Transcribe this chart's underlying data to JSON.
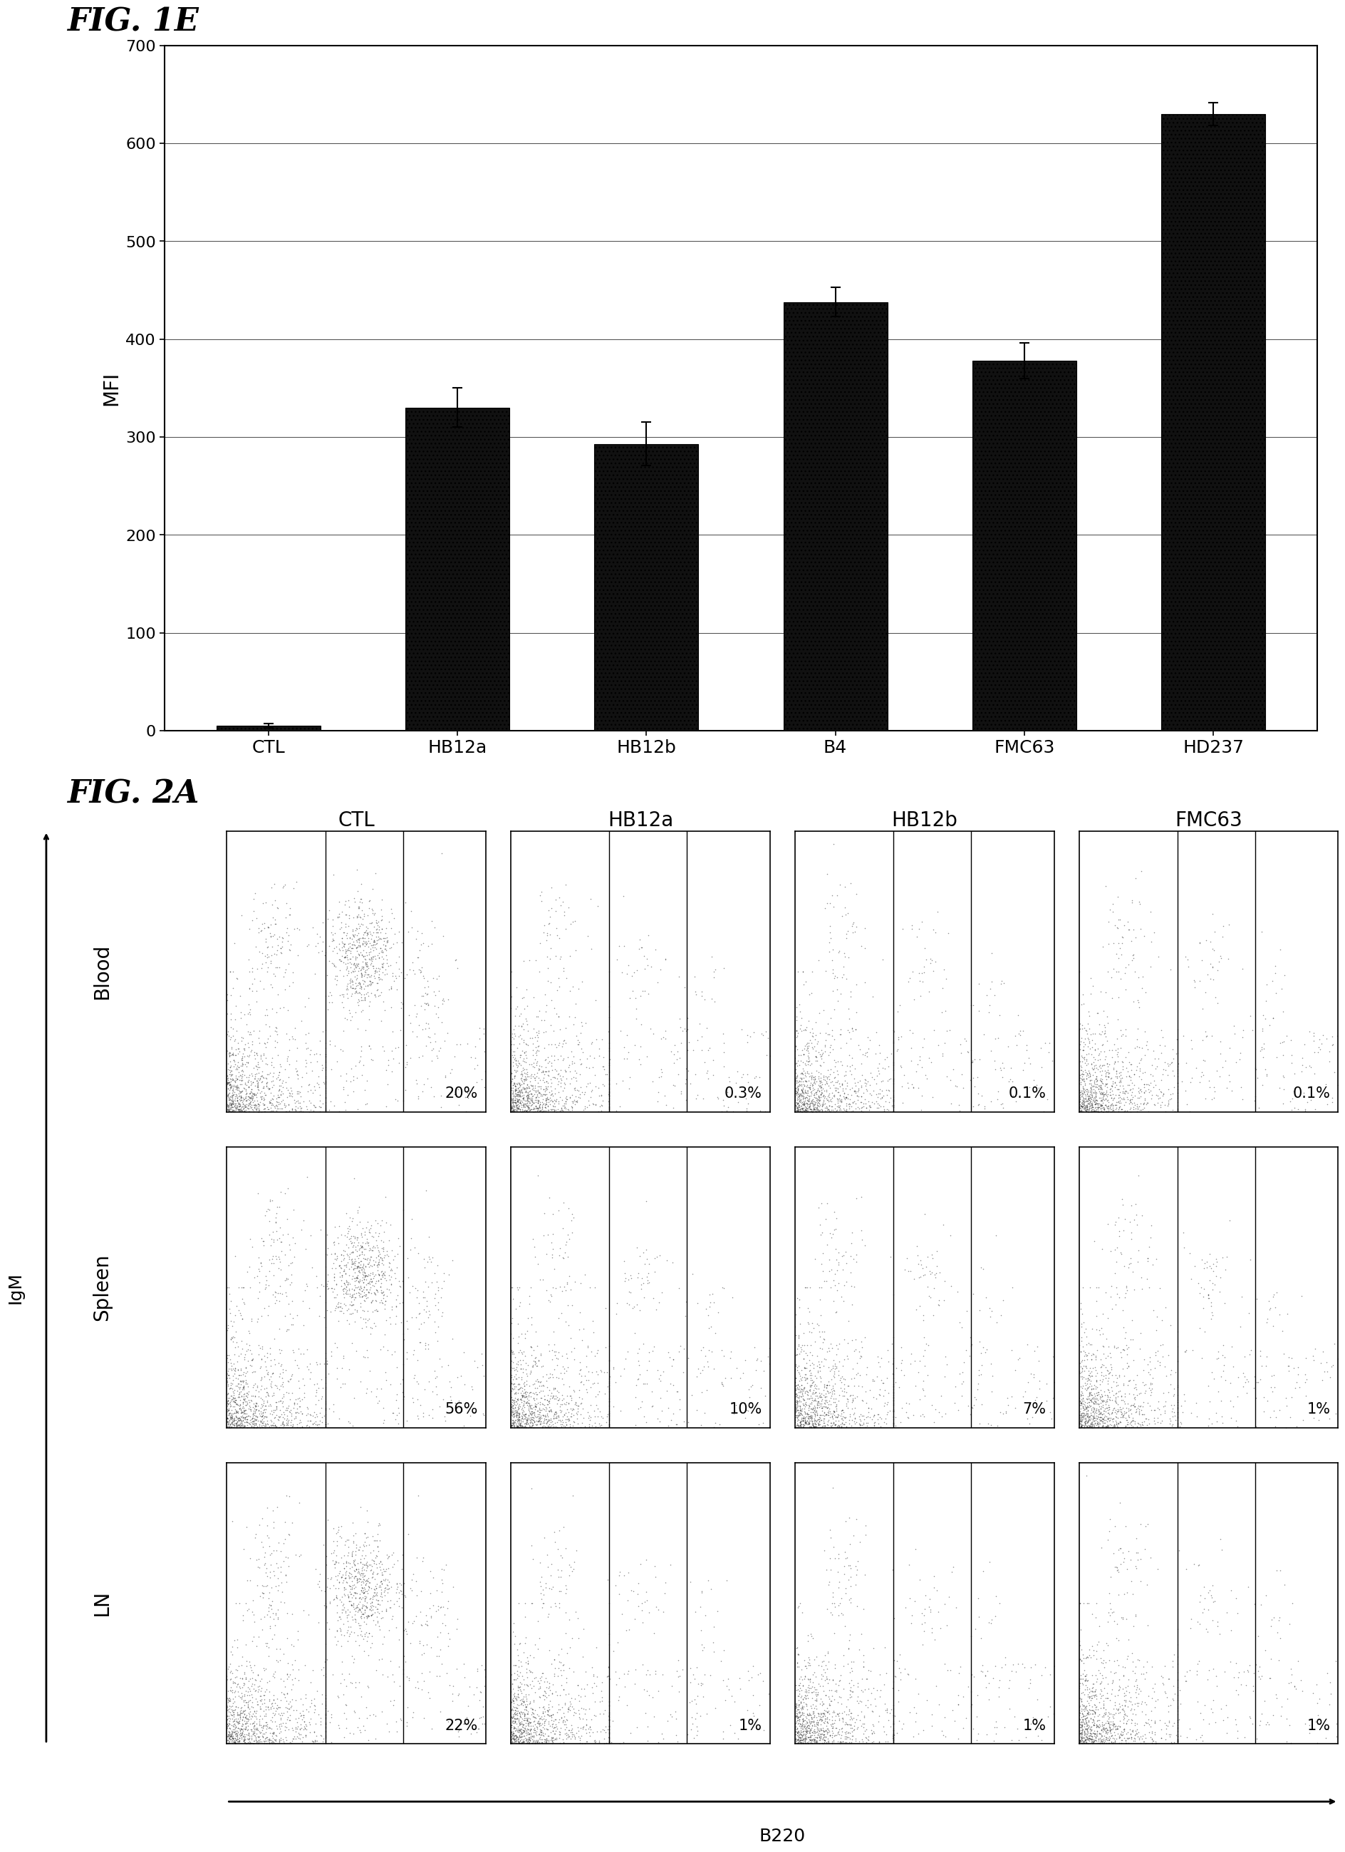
{
  "fig1e_title": "FIG. 1E",
  "fig1e_categories": [
    "CTL",
    "HB12a",
    "HB12b",
    "B4",
    "FMC63",
    "HD237"
  ],
  "fig1e_values": [
    5,
    330,
    293,
    438,
    378,
    630
  ],
  "fig1e_errors": [
    2,
    20,
    22,
    15,
    18,
    12
  ],
  "fig1e_ylabel": "MFI",
  "fig1e_ylim": [
    0,
    700
  ],
  "fig1e_yticks": [
    0,
    100,
    200,
    300,
    400,
    500,
    600,
    700
  ],
  "fig2a_title": "FIG. 2A",
  "fig2a_col_labels": [
    "CTL",
    "HB12a",
    "HB12b",
    "FMC63"
  ],
  "fig2a_row_labels": [
    "Blood",
    "Spleen",
    "LN"
  ],
  "fig2a_percentages": [
    [
      "20%",
      "0.3%",
      "0.1%",
      "0.1%"
    ],
    [
      "56%",
      "10%",
      "7%",
      "1%"
    ],
    [
      "22%",
      "1%",
      "1%",
      "1%"
    ]
  ],
  "fig2a_xlabel": "B220",
  "fig2a_ylabel": "IgM",
  "bar_color": "#111111",
  "bg_color": "#ffffff",
  "scatter_dot_color": "#222222",
  "font_size_title": 32,
  "font_size_label": 18,
  "font_size_tick": 16,
  "font_size_pct": 15,
  "font_size_col_header": 20,
  "font_size_row_label": 20
}
